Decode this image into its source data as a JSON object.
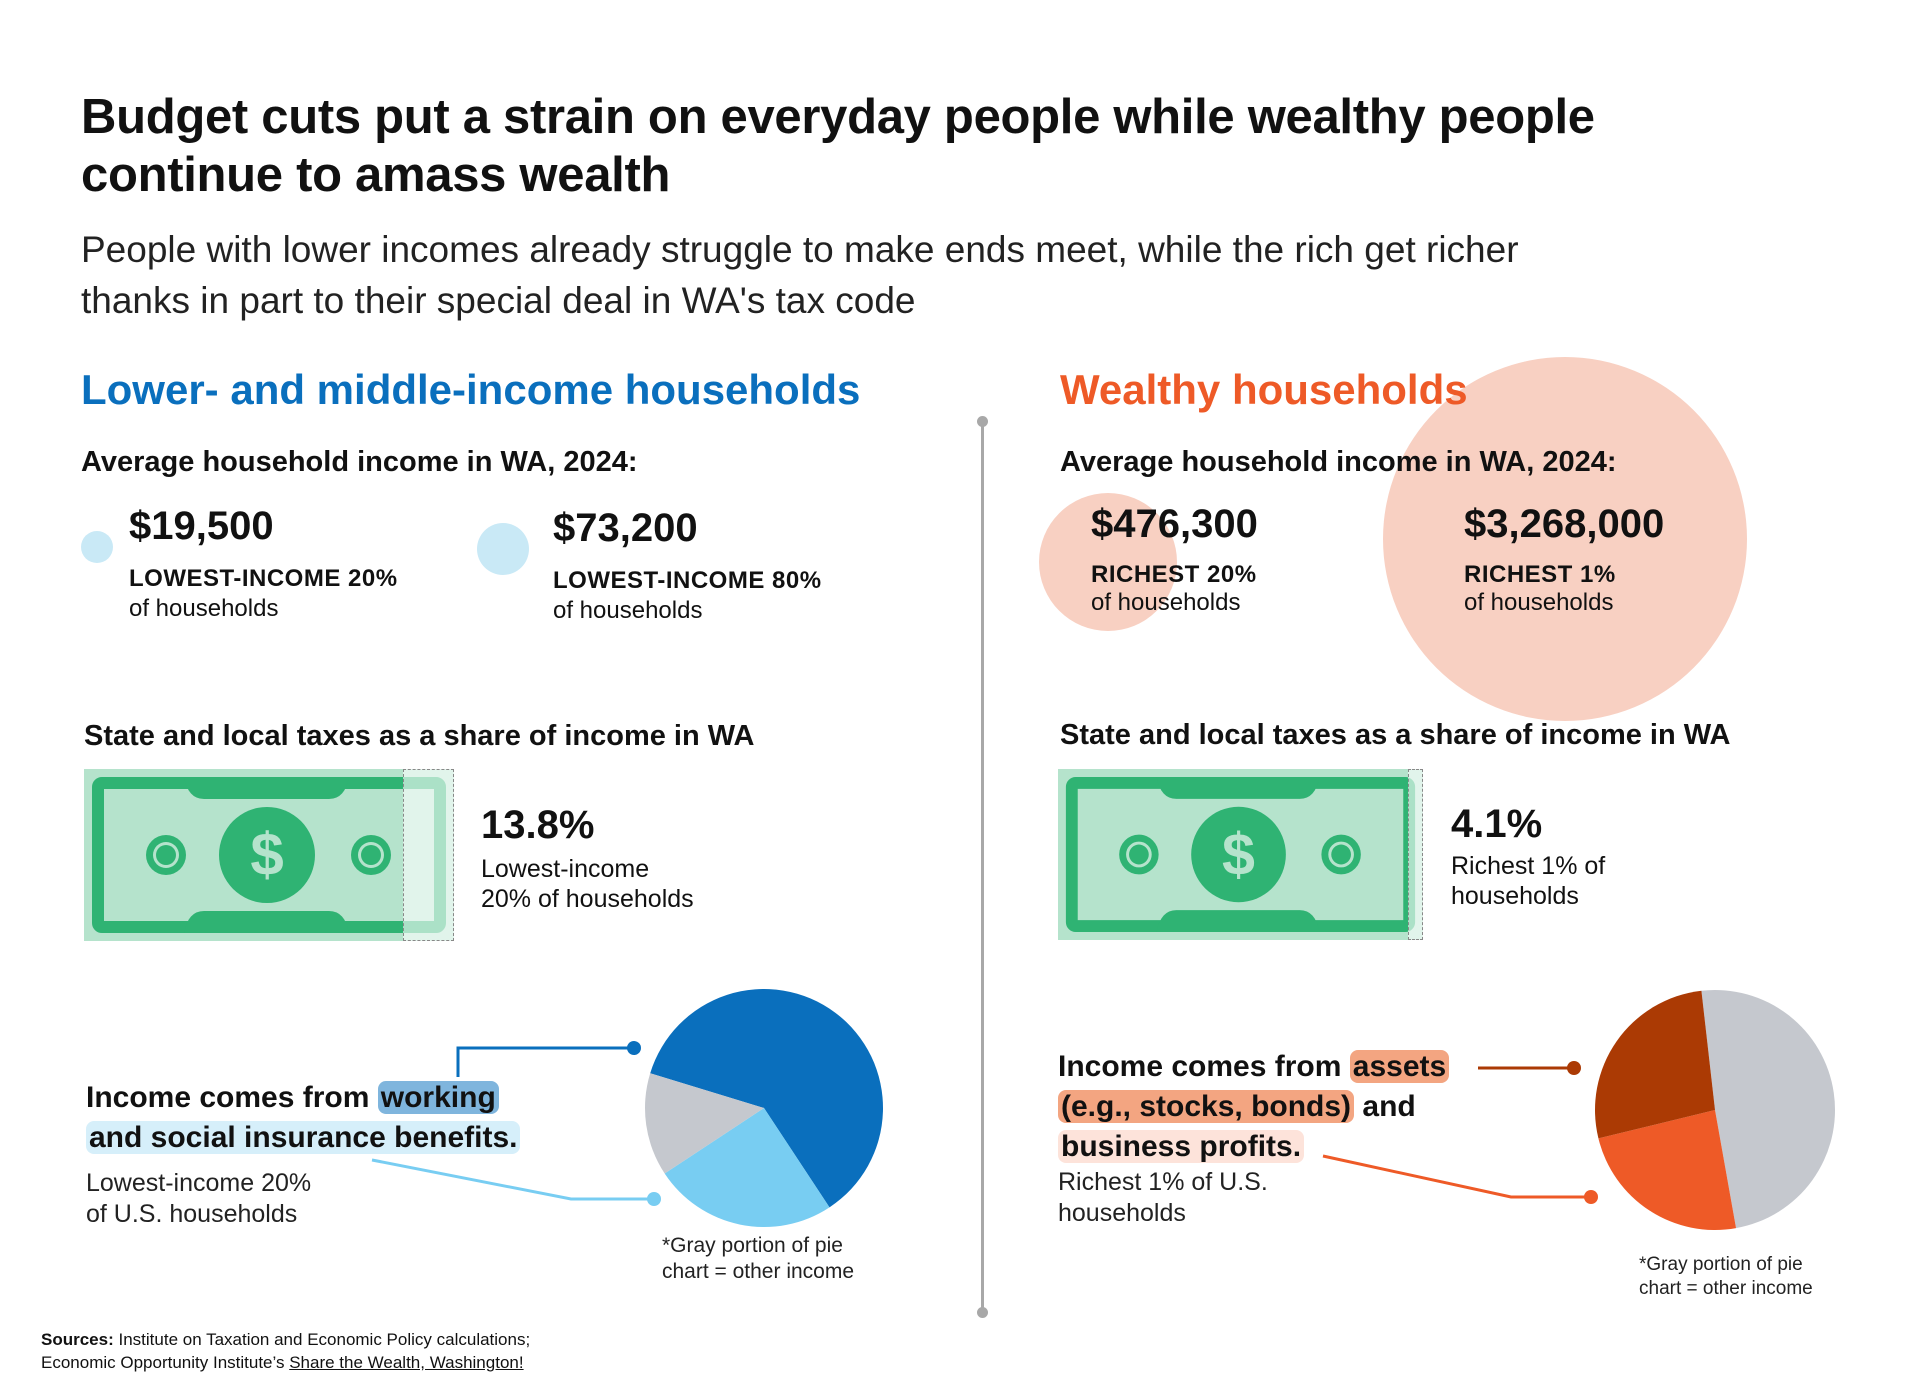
{
  "header": {
    "title_lines": [
      "Budget cuts put a strain on everyday people while wealthy people",
      "continue to amass wealth"
    ],
    "subtitle_lines": [
      "People with lower incomes already struggle to make ends meet, while the rich get richer",
      "thanks in part to their special deal in WA's tax code"
    ]
  },
  "colors": {
    "blue": "#0a6fbd",
    "light_blue": "#78cdf2",
    "orange": "#ee5a27",
    "dark_orange": "#ab3a04",
    "gray": "#c5c8ce",
    "bill_green": "#2fb373",
    "bill_bg": "#b5e3cc"
  },
  "left": {
    "heading": "Lower- and middle-income households",
    "income_heading": "Average household income in WA, 2024:",
    "incomes": [
      {
        "amount": "$19,500",
        "value": 19500,
        "category": "LOWEST-INCOME 20%",
        "sub": "of households"
      },
      {
        "amount": "$73,200",
        "value": 73200,
        "category": "LOWEST-INCOME 80%",
        "sub": "of households"
      }
    ],
    "tax_heading": "State and local taxes as a share of income in WA",
    "tax_pct_label": "13.8%",
    "tax_share": 0.138,
    "tax_desc_lines": [
      "Lowest-income",
      "20% of households"
    ],
    "income_source": {
      "prefix": "Income comes from",
      "hl1": "working",
      "hl2": "and social insurance benefits.",
      "sub_lines": [
        "Lowest-income 20%",
        "of U.S. households"
      ]
    },
    "footnote_lines": [
      "*Gray portion of pie",
      "chart = other income"
    ]
  },
  "right": {
    "heading": "Wealthy households",
    "income_heading": "Average household income in WA, 2024:",
    "incomes": [
      {
        "amount": "$476,300",
        "value": 476300,
        "category": "RICHEST 20%",
        "sub": "of households"
      },
      {
        "amount": "$3,268,000",
        "value": 3268000,
        "category": "RICHEST 1%",
        "sub": "of households"
      }
    ],
    "tax_heading": "State and local taxes as a share of income in WA",
    "tax_pct_label": "4.1%",
    "tax_share": 0.041,
    "tax_desc_lines": [
      "Richest 1% of",
      "households"
    ],
    "income_source": {
      "prefix": "Income comes from",
      "hl1": "assets",
      "hl2": "(e.g., stocks, bonds)",
      "mid": "and",
      "hl3": "business profits.",
      "sub_lines": [
        "Richest 1% of U.S.",
        "households"
      ]
    },
    "footnote_lines": [
      "*Gray portion of pie",
      "chart = other income"
    ]
  },
  "chart_data": [
    {
      "type": "pie",
      "title": "Income sources, lowest-income 20% of U.S. households",
      "slices": [
        {
          "name": "Working",
          "value": 61,
          "color": "#0a6fbd"
        },
        {
          "name": "Social insurance benefits",
          "value": 25,
          "color": "#78cdf2"
        },
        {
          "name": "Other income",
          "value": 14,
          "color": "#c5c8ce"
        }
      ],
      "start_angle_deg": 197
    },
    {
      "type": "pie",
      "title": "Income sources, richest 1% of U.S. households",
      "slices": [
        {
          "name": "Other income",
          "value": 49,
          "color": "#c5c8ce"
        },
        {
          "name": "Business profits",
          "value": 24,
          "color": "#ee5a27"
        },
        {
          "name": "Assets (stocks, bonds)",
          "value": 27,
          "color": "#ab3a04"
        }
      ],
      "start_angle_deg": 263.5
    }
  ],
  "sources": {
    "label": "Sources:",
    "line1": "Institute on Taxation and Economic Policy calculations;",
    "line2_prefix": "Economic Opportunity Institute’s",
    "link": "Share the Wealth, Washington!"
  }
}
